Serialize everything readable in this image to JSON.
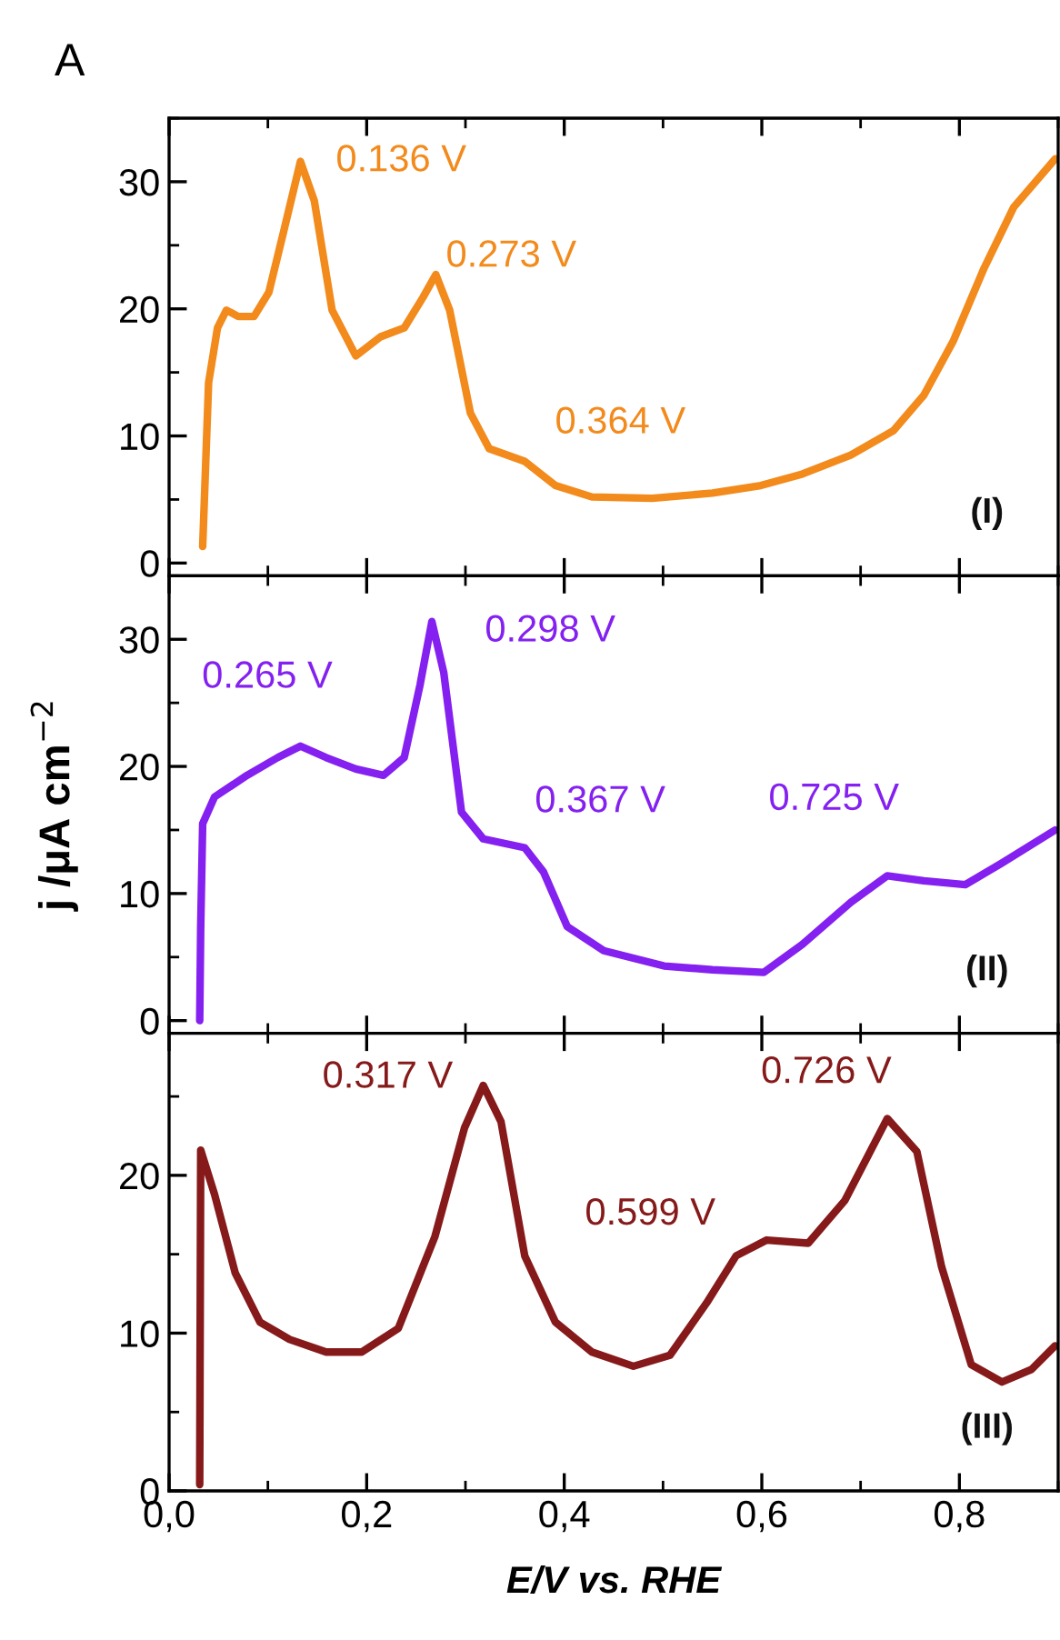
{
  "chart_data": [
    {
      "type": "line",
      "title": "A",
      "xlim": [
        0,
        0.9
      ],
      "ylim": [
        -1,
        35
      ],
      "xticks": [
        {
          "value": 0,
          "label": null
        },
        {
          "value": 0.2,
          "label": null
        },
        {
          "value": 0.4,
          "label": null
        },
        {
          "value": 0.6,
          "label": null
        },
        {
          "value": 0.8,
          "label": null
        }
      ],
      "yticks": [
        0,
        10,
        20,
        30
      ],
      "tick_labels": "y",
      "series": [
        {
          "color": "#f28a1c",
          "x": [
            0.034,
            0.04,
            0.049,
            0.058,
            0.07,
            0.086,
            0.101,
            0.116,
            0.133,
            0.147,
            0.165,
            0.189,
            0.214,
            0.238,
            0.257,
            0.27,
            0.284,
            0.305,
            0.324,
            0.36,
            0.391,
            0.428,
            0.489,
            0.55,
            0.599,
            0.641,
            0.69,
            0.733,
            0.764,
            0.794,
            0.825,
            0.855,
            0.897
          ],
          "values": [
            1.3,
            14.2,
            18.5,
            19.9,
            19.4,
            19.4,
            21.3,
            26.1,
            31.6,
            28.5,
            19.9,
            16.3,
            17.8,
            18.5,
            20.9,
            22.7,
            19.9,
            11.8,
            9.0,
            8.0,
            6.1,
            5.2,
            5.1,
            5.5,
            6.1,
            7.0,
            8.5,
            10.4,
            13.2,
            17.5,
            23.2,
            28.0,
            31.8
          ]
        }
      ],
      "annotations": [
        {
          "text": "0.136 V",
          "x": 0.133,
          "y": 31.6
        },
        {
          "text": "0.273 V",
          "x": 0.27,
          "y": 22.7
        },
        {
          "text": "0.364 V",
          "x": 0.36,
          "y": 8.0
        },
        "(I)"
      ]
    },
    {
      "type": "line",
      "ylabel": "j /μA cm$^{−2}$",
      "xlim": [
        0,
        0.9
      ],
      "ylim": [
        -1,
        35
      ],
      "xticks": [
        {
          "value": 0,
          "label": null
        },
        {
          "value": 0.2,
          "label": null
        },
        {
          "value": 0.4,
          "label": null
        },
        {
          "value": 0.6,
          "label": null
        },
        {
          "value": 0.8,
          "label": null
        }
      ],
      "yticks": [
        0,
        10,
        20,
        30
      ],
      "tick_labels": "y",
      "series": [
        {
          "color": "#8420f0",
          "x": [
            0.031,
            0.032,
            0.034,
            0.046,
            0.079,
            0.11,
            0.133,
            0.159,
            0.189,
            0.217,
            0.238,
            0.254,
            0.266,
            0.278,
            0.296,
            0.318,
            0.36,
            0.379,
            0.403,
            0.44,
            0.501,
            0.55,
            0.602,
            0.641,
            0.69,
            0.727,
            0.764,
            0.806,
            0.843,
            0.897
          ],
          "values": [
            0,
            7.4,
            15.5,
            17.6,
            19.3,
            20.7,
            21.6,
            20.7,
            19.8,
            19.3,
            20.7,
            26.4,
            31.4,
            27.4,
            16.4,
            14.3,
            13.6,
            11.7,
            7.4,
            5.5,
            4.3,
            4.0,
            3.8,
            6.0,
            9.3,
            11.4,
            11.0,
            10.7,
            12.4,
            15.0
          ]
        }
      ],
      "annotations": [
        {
          "text": "0.265 V",
          "x": 0.133,
          "y": 21.6
        },
        {
          "text": "0.298 V",
          "x": 0.266,
          "y": 31.4
        },
        {
          "text": "0.367 V",
          "x": 0.36,
          "y": 13.6
        },
        {
          "text": "0.725 V",
          "x": 0.727,
          "y": 11.4
        },
        "(II)"
      ]
    },
    {
      "type": "line",
      "xlabel": "E/V vs. RHE",
      "xlim": [
        0,
        0.9
      ],
      "ylim": [
        0,
        29
      ],
      "xticks": [
        {
          "value": 0,
          "label": "0,0"
        },
        {
          "value": 0.2,
          "label": "0,2"
        },
        {
          "value": 0.4,
          "label": "0,4"
        },
        {
          "value": 0.6,
          "label": "0,6"
        },
        {
          "value": 0.8,
          "label": "0,8"
        }
      ],
      "yticks": [
        0,
        10,
        20
      ],
      "series": [
        {
          "color": "#861a1a",
          "x": [
            0.031,
            0.032,
            0.046,
            0.067,
            0.092,
            0.122,
            0.159,
            0.195,
            0.232,
            0.269,
            0.299,
            0.318,
            0.336,
            0.36,
            0.391,
            0.428,
            0.47,
            0.507,
            0.544,
            0.574,
            0.605,
            0.647,
            0.684,
            0.727,
            0.757,
            0.782,
            0.812,
            0.843,
            0.873,
            0.897
          ],
          "values": [
            0.4,
            21.6,
            18.8,
            13.8,
            10.7,
            9.6,
            8.8,
            8.8,
            10.3,
            16.1,
            23.0,
            25.7,
            23.4,
            14.9,
            10.7,
            8.8,
            7.9,
            8.6,
            11.9,
            14.9,
            15.9,
            15.7,
            18.4,
            23.6,
            21.5,
            14.2,
            8.0,
            6.9,
            7.7,
            9.2
          ]
        }
      ],
      "annotations": [
        {
          "text": "0.317 V",
          "x": 0.318,
          "y": 25.7
        },
        {
          "text": "0.726 V",
          "x": 0.727,
          "y": 23.6
        },
        {
          "text": "0.599 V",
          "x": 0.605,
          "y": 15.9
        },
        "(III)"
      ]
    }
  ]
}
